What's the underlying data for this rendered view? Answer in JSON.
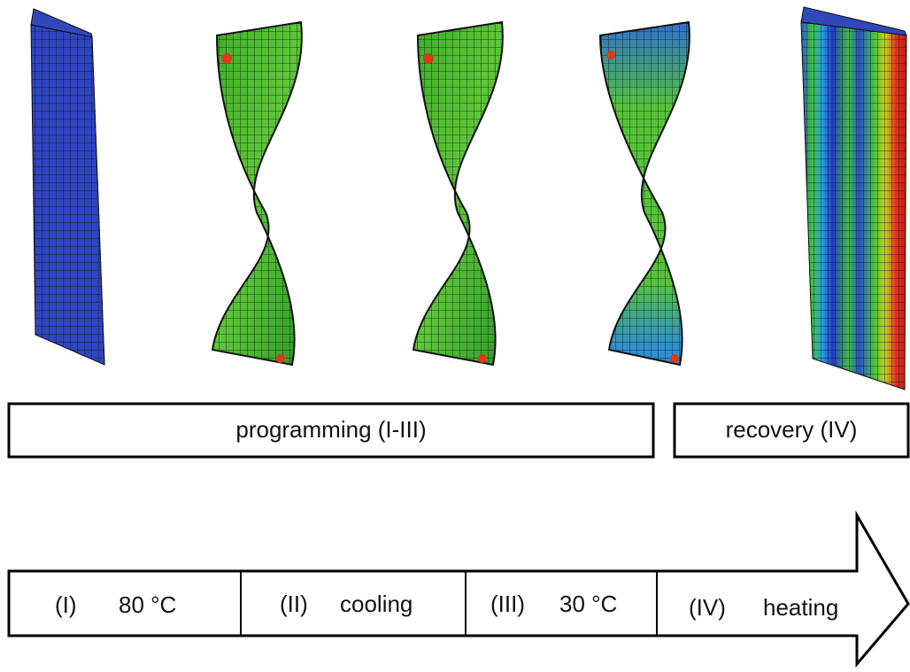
{
  "phases": [
    {
      "label": "programming (I-III)"
    },
    {
      "label": "recovery (IV)"
    }
  ],
  "steps": [
    {
      "id": "(I)",
      "label": "80 °C"
    },
    {
      "id": "(II)",
      "label": "cooling"
    },
    {
      "id": "(III)",
      "label": "30 °C"
    },
    {
      "id": "(IV)",
      "label": "heating"
    }
  ]
}
